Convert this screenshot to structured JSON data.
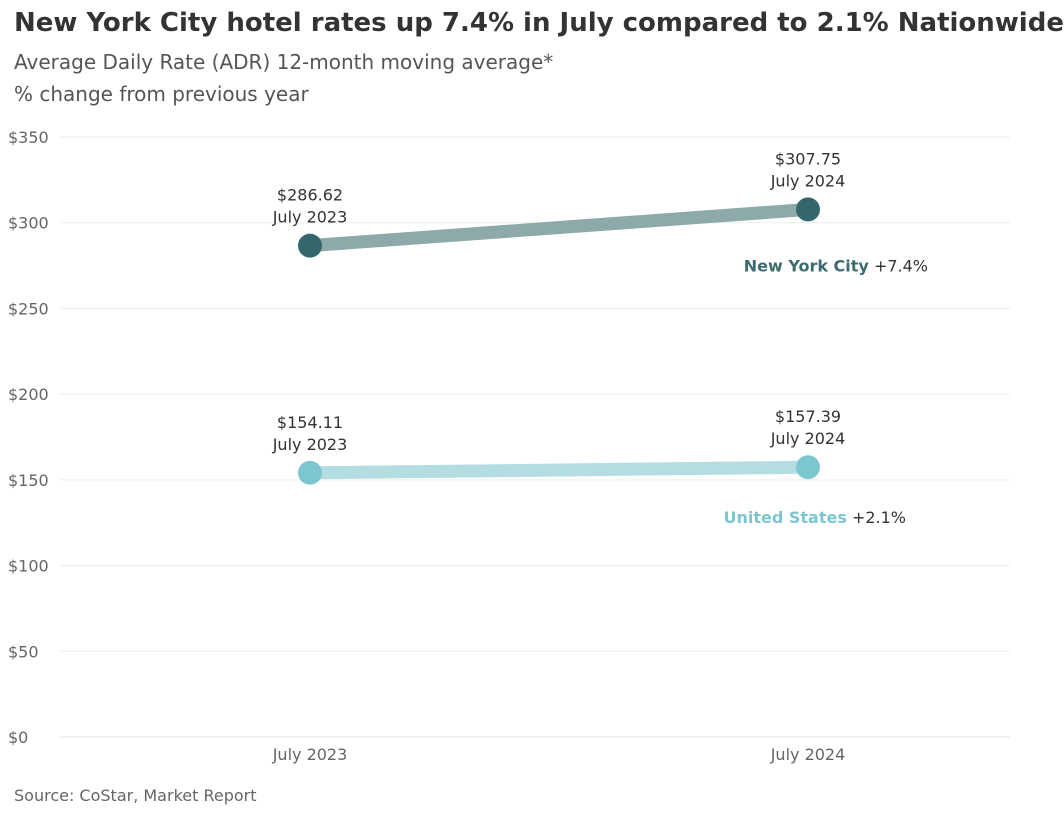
{
  "chart_data": {
    "type": "line",
    "title": "New York City hotel rates up 7.4% in July compared to 2.1% Nationwide",
    "subtitle": "Average Daily Rate (ADR) 12-month moving average*",
    "subtitle2": "% change from previous year",
    "source": "Source: CoStar, Market Report",
    "categories": [
      "July 2023",
      "July 2024"
    ],
    "ylim": [
      0,
      350
    ],
    "yticks": [
      0,
      50,
      100,
      150,
      200,
      250,
      300,
      350
    ],
    "ytick_labels": [
      "$0",
      "$50",
      "$100",
      "$150",
      "$200",
      "$250",
      "$300",
      "$350"
    ],
    "grid": true,
    "series": [
      {
        "name": "New York City",
        "change": "+7.4%",
        "values": [
          286.62,
          307.75
        ],
        "value_labels": [
          "$286.62",
          "$307.75"
        ],
        "point_colors": "#33676b",
        "line_color": "#8ea9aa",
        "name_color": "#3c6b70"
      },
      {
        "name": "United States",
        "change": "+2.1%",
        "values": [
          154.11,
          157.39
        ],
        "value_labels": [
          "$154.11",
          "$157.39"
        ],
        "point_colors": "#7cc7cf",
        "line_color": "#b3dde1",
        "name_color": "#7cc7cf"
      }
    ]
  }
}
